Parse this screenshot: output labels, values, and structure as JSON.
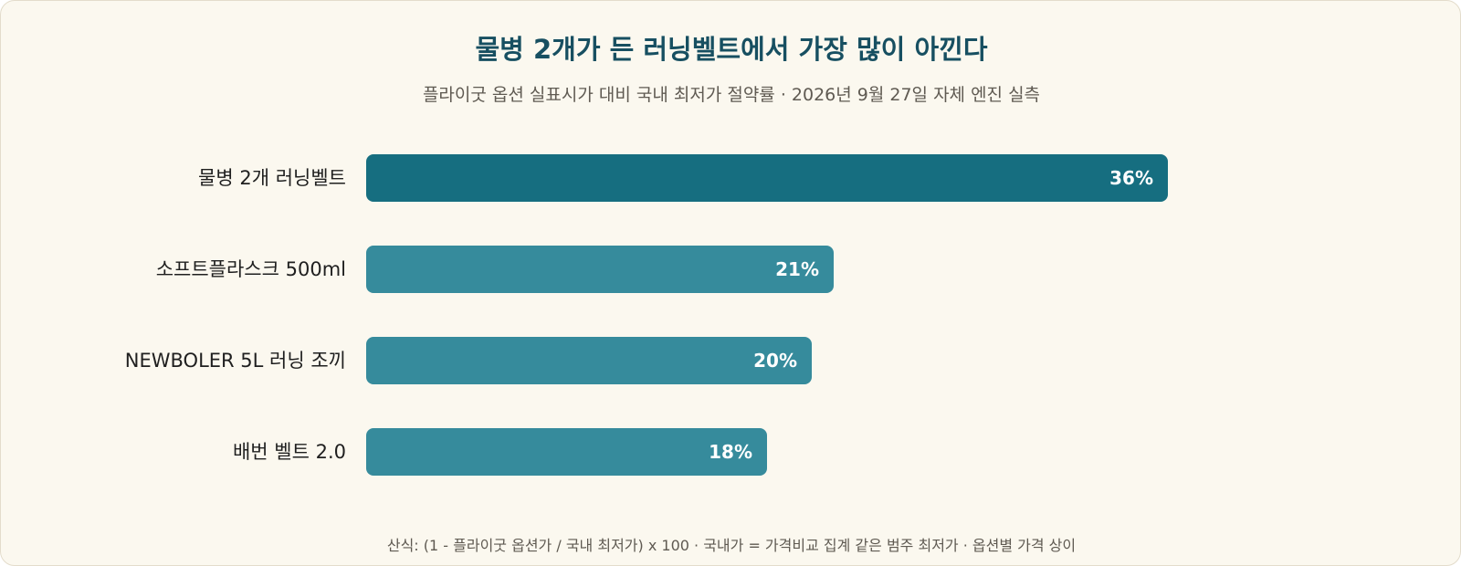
{
  "chart_data": {
    "type": "bar",
    "orientation": "horizontal",
    "title": "물병 2개가 든 러닝벨트에서 가장 많이 아낀다",
    "subtitle": "플라이굿 옵션 실표시가 대비 국내 최저가 절약률 · 2026년 9월 27일 자체 엔진 실측",
    "categories": [
      "물병 2개 러닝벨트",
      "소프트플라스크 500ml",
      "NEWBOLER 5L 러닝 조끼",
      "배번 벨트 2.0"
    ],
    "values": [
      36,
      21,
      20,
      18
    ],
    "value_labels": [
      "36%",
      "21%",
      "20%",
      "18%"
    ],
    "unit": "%",
    "xlim": [
      0,
      60
    ],
    "grid": false,
    "legend": "none",
    "colors": {
      "highlight": "#166e80",
      "default": "#368b9c"
    },
    "footnote": "산식: (1 - 플라이굿 옵션가 / 국내 최저가) x 100 · 국내가 = 가격비교 집계 같은 범주 최저가 · 옵션별 가격 상이"
  }
}
